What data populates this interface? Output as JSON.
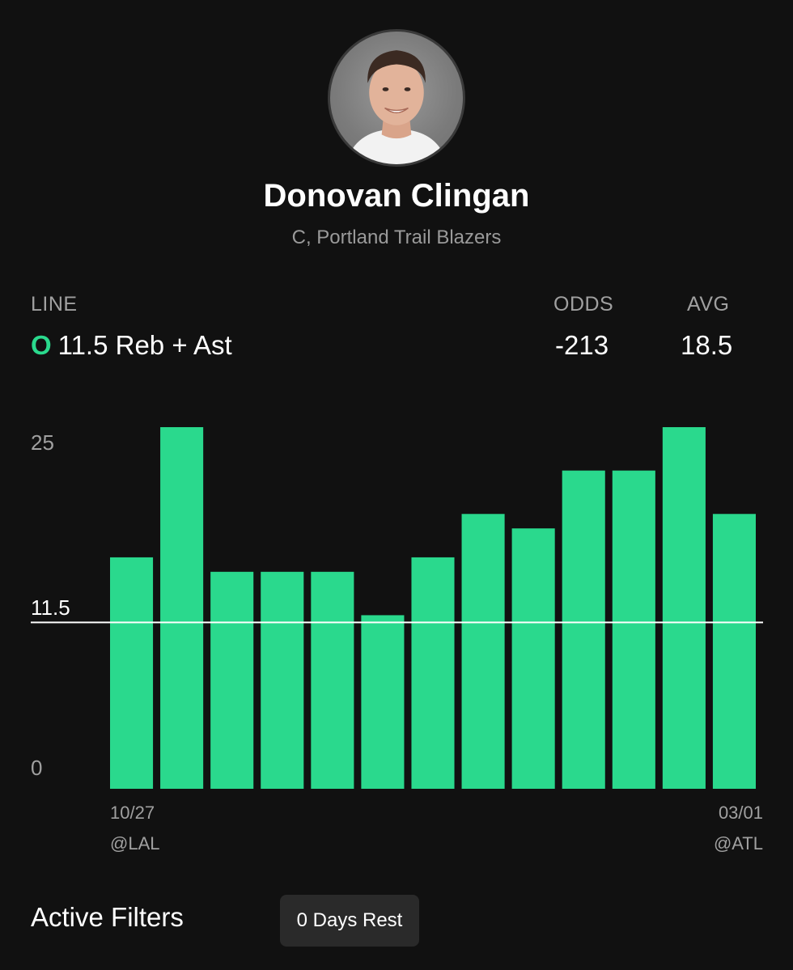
{
  "player": {
    "name": "Donovan Clingan",
    "subtitle": "C, Portland Trail Blazers"
  },
  "stats": {
    "line_label": "LINE",
    "odds_label": "ODDS",
    "avg_label": "AVG",
    "over_under": "O",
    "line_text": "11.5 Reb + Ast",
    "odds_value": "-213",
    "avg_value": "18.5"
  },
  "colors": {
    "bar": "#2ad98d",
    "background": "#111111",
    "line": "#ffffff",
    "muted_text": "#a0a0a0"
  },
  "chart_data": {
    "type": "bar",
    "values": [
      16,
      25,
      15,
      15,
      15,
      12,
      16,
      19,
      18,
      22,
      22,
      25,
      19
    ],
    "line_value": 11.5,
    "y_ticks": [
      "25",
      "11.5",
      "0"
    ],
    "ylim": [
      0,
      25
    ],
    "first_label": {
      "date": "10/27",
      "opponent": "@LAL"
    },
    "last_label": {
      "date": "03/01",
      "opponent": "@ATL"
    },
    "grid": false
  },
  "filters": {
    "title": "Active Filters",
    "chips": [
      "0 Days Rest"
    ]
  }
}
